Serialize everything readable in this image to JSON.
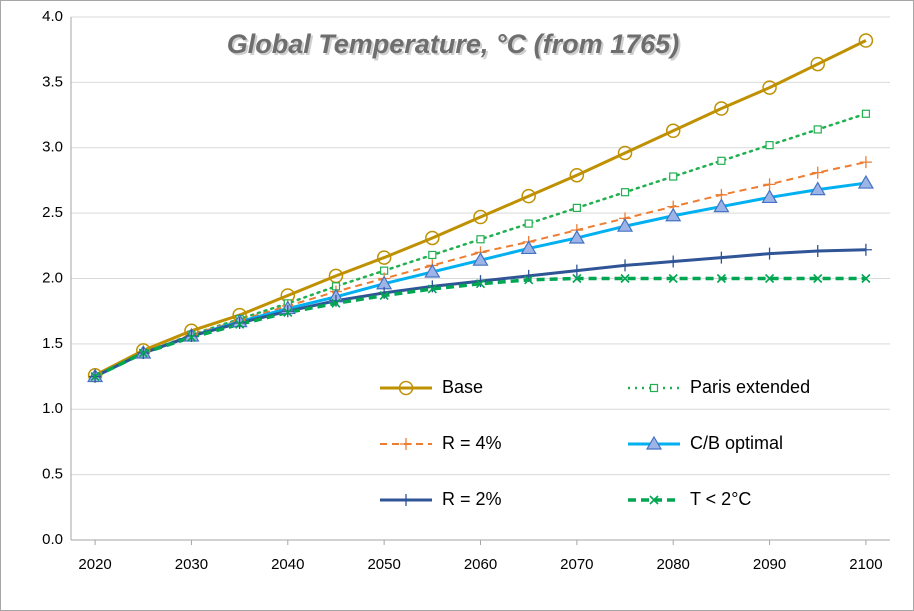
{
  "chart_data": {
    "type": "line",
    "title": "Global Temperature, °C (from 1765)",
    "x": [
      2020,
      2025,
      2030,
      2035,
      2040,
      2045,
      2050,
      2055,
      2060,
      2065,
      2070,
      2075,
      2080,
      2085,
      2090,
      2095,
      2100
    ],
    "xlim": [
      2017.5,
      2102.5
    ],
    "xticks": [
      2020,
      2030,
      2040,
      2050,
      2060,
      2070,
      2080,
      2090,
      2100
    ],
    "ylim": [
      0,
      4
    ],
    "yticks": [
      {
        "value": 0,
        "label": "0.0"
      },
      0.5,
      {
        "value": 1,
        "label": "1.0"
      },
      1.5,
      {
        "value": 2,
        "label": "2.0"
      },
      2.5,
      {
        "value": 3,
        "label": "3.0"
      },
      3.5,
      {
        "value": 4,
        "label": "4.0"
      }
    ],
    "grid": true,
    "series": [
      {
        "name": "Base",
        "color": "#bf9000",
        "marker": "circle",
        "dash": "solid",
        "values": [
          1.26,
          1.45,
          1.6,
          1.72,
          1.87,
          2.02,
          2.16,
          2.31,
          2.47,
          2.63,
          2.79,
          2.96,
          3.13,
          3.3,
          3.46,
          3.64,
          3.82
        ]
      },
      {
        "name": "Paris extended",
        "color": "#20b050",
        "marker": "square",
        "dash": "dotted",
        "values": [
          1.25,
          1.43,
          1.57,
          1.69,
          1.81,
          1.94,
          2.06,
          2.18,
          2.3,
          2.42,
          2.54,
          2.66,
          2.78,
          2.9,
          3.02,
          3.14,
          3.26
        ]
      },
      {
        "name": "R = 4%",
        "color": "#ed7d31",
        "marker": "plus",
        "dash": "dashed",
        "values": [
          1.25,
          1.43,
          1.57,
          1.68,
          1.79,
          1.9,
          2.0,
          2.1,
          2.2,
          2.28,
          2.37,
          2.46,
          2.55,
          2.64,
          2.72,
          2.81,
          2.89
        ]
      },
      {
        "name": "C/B optimal",
        "color": "#00b0f0",
        "marker": "triangle",
        "dash": "solid",
        "values": [
          1.25,
          1.43,
          1.56,
          1.67,
          1.77,
          1.86,
          1.96,
          2.05,
          2.14,
          2.23,
          2.31,
          2.4,
          2.48,
          2.55,
          2.62,
          2.68,
          2.73
        ]
      },
      {
        "name": "R = 2%",
        "color": "#2f5597",
        "marker": "plus",
        "dash": "solid",
        "values": [
          1.25,
          1.43,
          1.56,
          1.66,
          1.75,
          1.83,
          1.89,
          1.94,
          1.98,
          2.02,
          2.06,
          2.1,
          2.13,
          2.16,
          2.19,
          2.21,
          2.22
        ]
      },
      {
        "name": "T < 2°C",
        "color": "#00a651",
        "marker": "x",
        "dash": "bolddash",
        "values": [
          1.25,
          1.43,
          1.55,
          1.65,
          1.74,
          1.81,
          1.87,
          1.92,
          1.96,
          1.99,
          2.0,
          2.0,
          2.0,
          2.0,
          2.0,
          2.0,
          2.0
        ]
      }
    ]
  }
}
